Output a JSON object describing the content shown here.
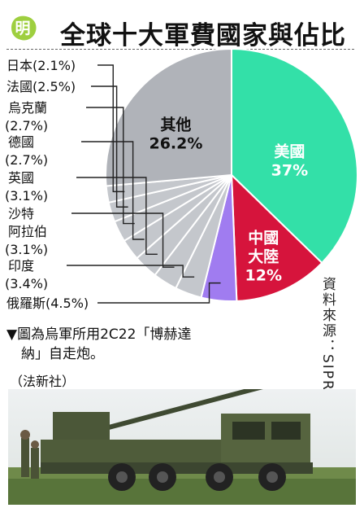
{
  "header": {
    "badge": "明",
    "title": "全球十大軍費國家與佔比"
  },
  "source": "資料來源：SIPRI",
  "caption": {
    "line1": "▼圖為烏軍所用2C22「博赫達",
    "line2": "納」自走炮。",
    "credit": "（法新社）"
  },
  "chart_data": {
    "type": "pie",
    "unit": "%",
    "slices": [
      {
        "label": "美國",
        "value": 37,
        "value_label": "37%",
        "color": "#33e0a8"
      },
      {
        "label": "中國大陸",
        "label_lines": [
          "中國",
          "大陸"
        ],
        "value": 12,
        "value_label": "12%",
        "color": "#d6143c"
      },
      {
        "label": "俄羅斯",
        "value": 4.5,
        "value_label": "(4.5%)",
        "color": "#a07cf0"
      },
      {
        "label": "印度",
        "value": 3.4,
        "value_label": "(3.4%)",
        "color": "#c4c7cc"
      },
      {
        "label": "沙特阿拉伯",
        "label_lines": [
          "沙特",
          "阿拉伯"
        ],
        "value": 3.1,
        "value_label": "(3.1%)",
        "color": "#c4c7cc"
      },
      {
        "label": "英國",
        "value": 3.1,
        "value_label": "(3.1%)",
        "color": "#c4c7cc"
      },
      {
        "label": "德國",
        "value": 2.7,
        "value_label": "(2.7%)",
        "color": "#c4c7cc"
      },
      {
        "label": "烏克蘭",
        "value": 2.7,
        "value_label": "(2.7%)",
        "color": "#c4c7cc"
      },
      {
        "label": "法國",
        "value": 2.5,
        "value_label": "(2.5%)",
        "color": "#c4c7cc"
      },
      {
        "label": "日本",
        "value": 2.1,
        "value_label": "(2.1%)",
        "color": "#c4c7cc"
      },
      {
        "label": "其他",
        "value": 26.2,
        "value_label": "26.2%",
        "color": "#b0b3b9"
      }
    ]
  }
}
